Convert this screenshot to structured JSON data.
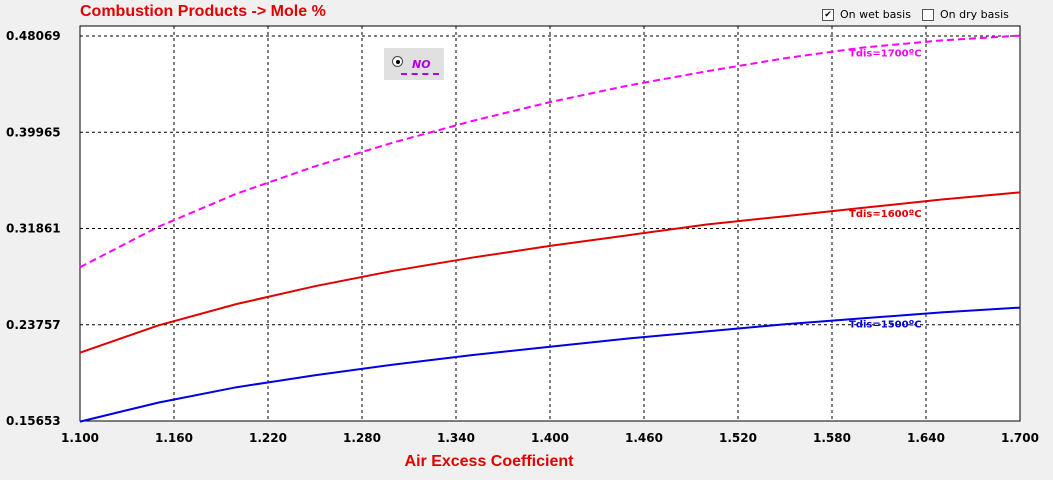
{
  "chart_data": {
    "type": "line",
    "title": "Combustion Products -> Mole %",
    "xlabel": "Air Excess Coefficient",
    "ylabel": "",
    "xlim": [
      1.1,
      1.7
    ],
    "ylim": [
      0.15653,
      0.48069
    ],
    "x_ticks": [
      "1.100",
      "1.160",
      "1.220",
      "1.280",
      "1.340",
      "1.400",
      "1.460",
      "1.520",
      "1.580",
      "1.640",
      "1.700"
    ],
    "y_ticks": [
      "0.15653",
      "0.23757",
      "0.31861",
      "0.39965",
      "0.48069"
    ],
    "grid": true,
    "legend": {
      "label": "NO",
      "placement": "top-center"
    },
    "series": [
      {
        "name": "Tdis=1700ºC",
        "color": "#ff00ff",
        "dash": true,
        "x": [
          1.1,
          1.15,
          1.2,
          1.25,
          1.3,
          1.35,
          1.4,
          1.45,
          1.5,
          1.55,
          1.6,
          1.65,
          1.7
        ],
        "y": [
          0.286,
          0.32,
          0.348,
          0.371,
          0.391,
          0.409,
          0.425,
          0.439,
          0.451,
          0.462,
          0.471,
          0.477,
          0.481
        ]
      },
      {
        "name": "Tdis=1600ºC",
        "color": "#e00000",
        "dash": false,
        "x": [
          1.1,
          1.15,
          1.2,
          1.25,
          1.3,
          1.35,
          1.4,
          1.45,
          1.5,
          1.55,
          1.6,
          1.65,
          1.7
        ],
        "y": [
          0.214,
          0.237,
          0.255,
          0.27,
          0.283,
          0.294,
          0.304,
          0.313,
          0.322,
          0.329,
          0.336,
          0.343,
          0.349
        ]
      },
      {
        "name": "Tdis=1500ºC",
        "color": "#0000e0",
        "dash": false,
        "x": [
          1.1,
          1.15,
          1.2,
          1.25,
          1.3,
          1.35,
          1.4,
          1.45,
          1.5,
          1.55,
          1.6,
          1.65,
          1.7
        ],
        "y": [
          0.156,
          0.172,
          0.185,
          0.195,
          0.204,
          0.212,
          0.219,
          0.226,
          0.232,
          0.238,
          0.243,
          0.248,
          0.252
        ]
      }
    ]
  },
  "options": {
    "wet_basis": {
      "label": "On wet basis",
      "checked": true
    },
    "dry_basis": {
      "label": "On dry basis",
      "checked": false
    }
  },
  "colors": {
    "title": "#e00000",
    "xlabel": "#e00000",
    "grid": "#000000"
  }
}
